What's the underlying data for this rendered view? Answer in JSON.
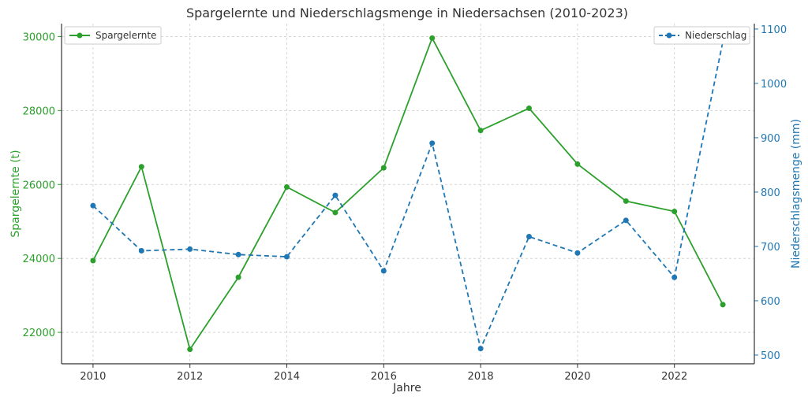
{
  "chart_data": {
    "type": "line",
    "title": "Spargelernte und Niederschlagsmenge in Niedersachsen (2010-2023)",
    "xlabel": "Jahre",
    "x": [
      2010,
      2011,
      2012,
      2013,
      2014,
      2015,
      2016,
      2017,
      2018,
      2019,
      2020,
      2021,
      2022,
      2023
    ],
    "xlim": [
      2009.35,
      2023.65
    ],
    "xticks": [
      2010,
      2012,
      2014,
      2016,
      2018,
      2020,
      2022
    ],
    "grid": true,
    "left_axis": {
      "label": "Spargelernte (t)",
      "color": "#2ca02c",
      "ylim": [
        21150,
        30350
      ],
      "ticks": [
        22000,
        24000,
        26000,
        28000,
        30000
      ]
    },
    "right_axis": {
      "label": "Niederschlagsmenge (mm)",
      "color": "#1f77b4",
      "ylim": [
        484,
        1110
      ],
      "ticks": [
        500,
        600,
        700,
        800,
        900,
        1000,
        1100
      ]
    },
    "series": [
      {
        "name": "Spargelernte",
        "axis": "left",
        "color": "#2ca02c",
        "style": "solid",
        "values": [
          23940,
          26480,
          21540,
          23490,
          25930,
          25240,
          26450,
          29960,
          27460,
          28060,
          26550,
          25550,
          25270,
          22750
        ]
      },
      {
        "name": "Niederschlag",
        "axis": "right",
        "color": "#1f77b4",
        "style": "dashed",
        "values": [
          775,
          692,
          695,
          685,
          681,
          794,
          655,
          890,
          512,
          718,
          688,
          748,
          643,
          1077
        ]
      }
    ],
    "legend": [
      {
        "name": "Spargelernte",
        "placement": "top-left"
      },
      {
        "name": "Niederschlag",
        "placement": "top-right"
      }
    ]
  }
}
